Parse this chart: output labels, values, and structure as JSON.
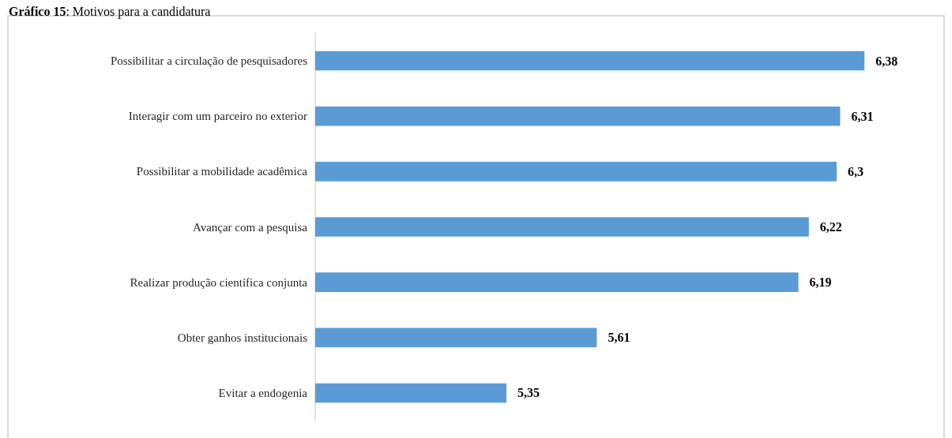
{
  "chart_data": {
    "type": "bar",
    "orientation": "horizontal",
    "title": "Gráfico 15: Motivos para a candidatura",
    "categories": [
      "Possibilitar a circulação de pesquisadores",
      "Interagir com um parceiro no exterior",
      "Possibilitar a mobilidade acadêmica",
      "Avançar com a pesquisa",
      "Realizar produção científica conjunta",
      "Obter ganhos institucionais",
      "Evitar a endogenia"
    ],
    "values": [
      6.38,
      6.31,
      6.3,
      6.22,
      6.19,
      5.61,
      5.35
    ],
    "value_labels": [
      "6,38",
      "6,31",
      "6,3",
      "6,22",
      "6,19",
      "5,61",
      "5,35"
    ],
    "color": "#5b9bd5",
    "xlim": [
      4.8,
      6.6
    ],
    "tick_labels": "y"
  }
}
